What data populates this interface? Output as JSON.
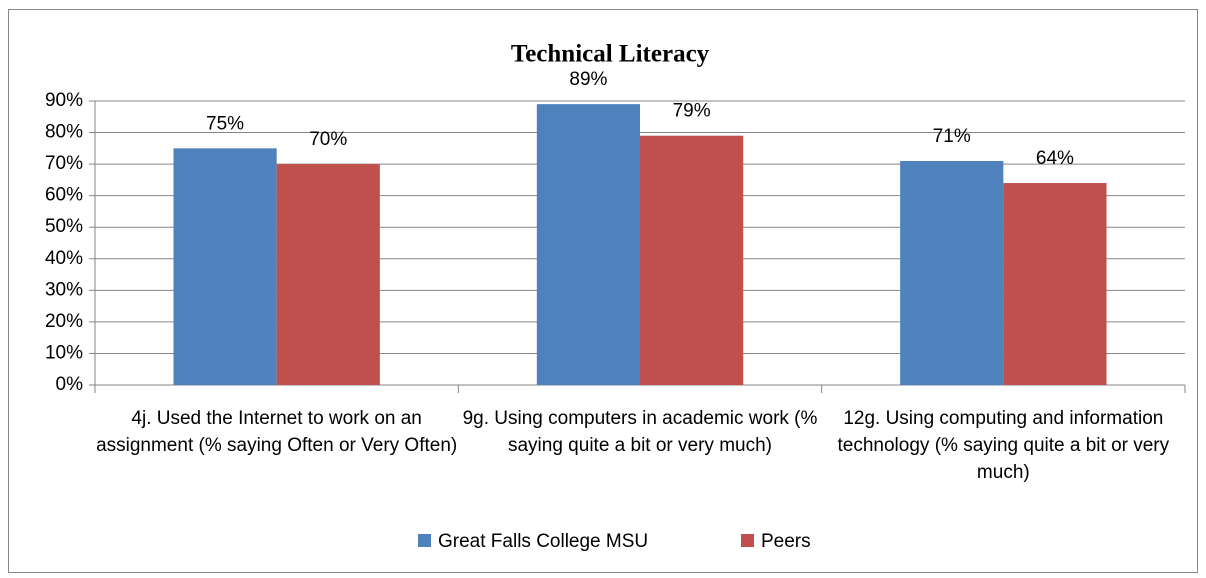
{
  "chart_data": {
    "type": "bar",
    "title": "Technical Literacy",
    "categories": [
      "4j.  Used the Internet to work on an assignment  (% saying Often or Very Often)",
      "9g.  Using computers in academic work  (% saying quite a bit or very much)",
      "12g.  Using computing and information technology (% saying quite a bit or very much)"
    ],
    "series": [
      {
        "name": "Great Falls College MSU",
        "color": "#4f81bd",
        "values": [
          75,
          89,
          71
        ],
        "value_labels": [
          "75%",
          "89%",
          "71%"
        ]
      },
      {
        "name": "Peers",
        "color": "#c0504d",
        "values": [
          70,
          79,
          64
        ],
        "value_labels": [
          "70%",
          "79%",
          "64%"
        ]
      }
    ],
    "ylim": [
      0,
      90
    ],
    "yticks": [
      {
        "value": 0,
        "label": "0%"
      },
      {
        "value": 10,
        "label": "10%"
      },
      {
        "value": 20,
        "label": "20%"
      },
      {
        "value": 30,
        "label": "30%"
      },
      {
        "value": 40,
        "label": "40%"
      },
      {
        "value": 50,
        "label": "50%"
      },
      {
        "value": 60,
        "label": "60%"
      },
      {
        "value": 70,
        "label": "70%"
      },
      {
        "value": 80,
        "label": "80%"
      },
      {
        "value": 90,
        "label": "90%"
      }
    ],
    "grid": true,
    "legend": "bottom"
  }
}
